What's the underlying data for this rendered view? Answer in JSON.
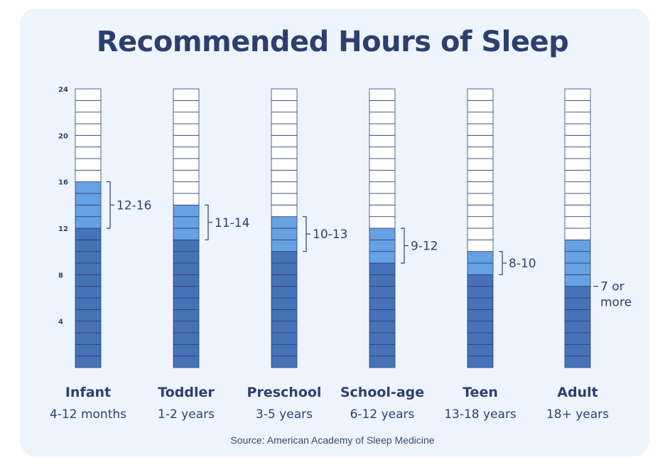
{
  "chart_data": {
    "type": "bar",
    "title": "Recommended Hours of Sleep",
    "source": "Source: American Academy of Sleep Medicine",
    "ylim": [
      0,
      24
    ],
    "y_ticks": [
      4,
      8,
      12,
      16,
      20,
      24
    ],
    "categories": [
      {
        "name": "Infant",
        "age": "4-12 months",
        "min": 12,
        "max": 16,
        "label": "12-16"
      },
      {
        "name": "Toddler",
        "age": "1-2 years",
        "min": 11,
        "max": 14,
        "label": "11-14"
      },
      {
        "name": "Preschool",
        "age": "3-5 years",
        "min": 10,
        "max": 13,
        "label": "10-13"
      },
      {
        "name": "School-age",
        "age": "6-12 years",
        "min": 9,
        "max": 12,
        "label": "9-12"
      },
      {
        "name": "Teen",
        "age": "13-18 years",
        "min": 8,
        "max": 10,
        "label": "8-10"
      },
      {
        "name": "Adult",
        "age": "18+ years",
        "min": 7,
        "max": 11,
        "label": "7 or more"
      }
    ],
    "colors": {
      "minimum": "#4672b8",
      "range": "#66a2e3",
      "empty": "#ffffff",
      "grid": "#2d3f6e",
      "text": "#2d3f6e"
    }
  }
}
